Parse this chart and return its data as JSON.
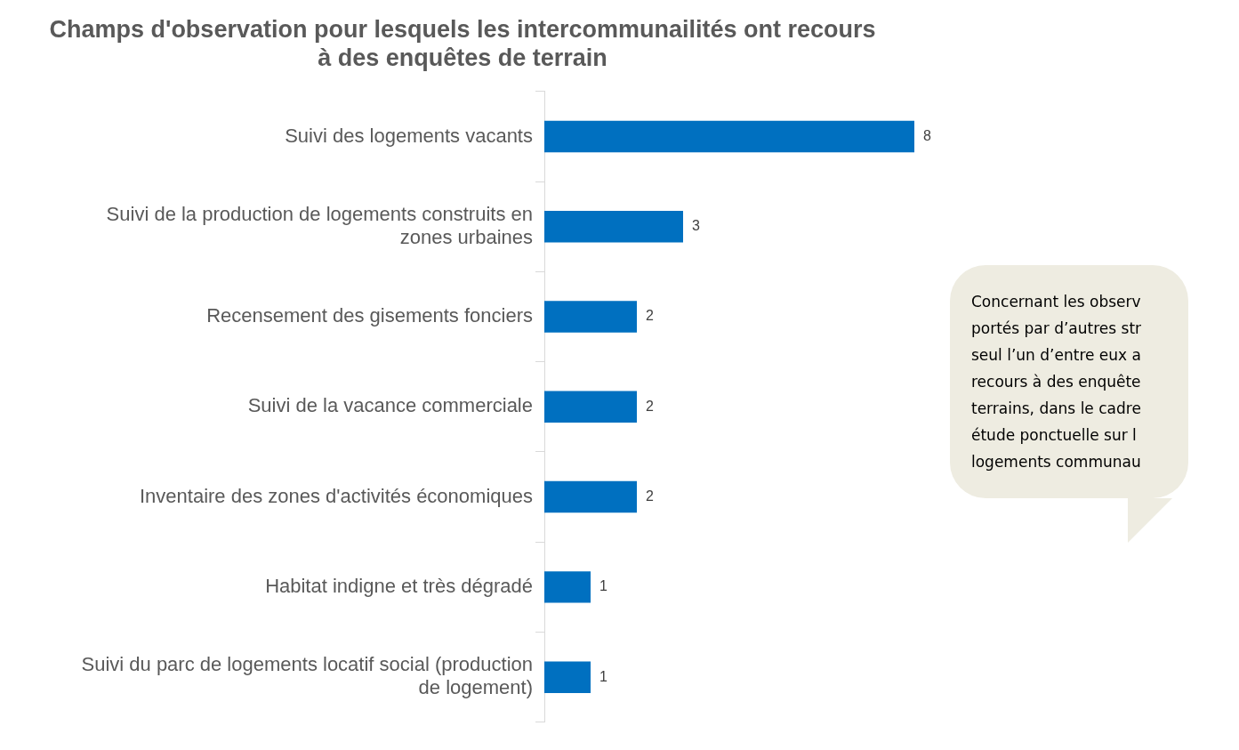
{
  "chart_data": {
    "type": "bar",
    "orientation": "horizontal",
    "title": "Champs d'observation pour lesquels les intercommunailités ont recours\nà des enquêtes de terrain",
    "categories": [
      "Suivi des logements vacants",
      "Suivi de la production de logements construits en\nzones urbaines",
      "Recensement des gisements fonciers",
      "Suivi de la vacance commerciale",
      "Inventaire des zones d'activités économiques",
      "Habitat indigne et très dégradé",
      "Suivi du parc de logements locatif social (production\nde logement)"
    ],
    "values": [
      8,
      3,
      2,
      2,
      2,
      1,
      1
    ],
    "color": "#0070c0",
    "data_labels": true,
    "grid": false,
    "legend": false,
    "tick_labels": "y",
    "annotations": [
      "Concernant les observ\nportés par d’autres str\nseul l’un d’entre eux a\nrecours à des enquête\nterrains, dans le cadre\nétude ponctuelle sur l\nlogements communau"
    ]
  }
}
